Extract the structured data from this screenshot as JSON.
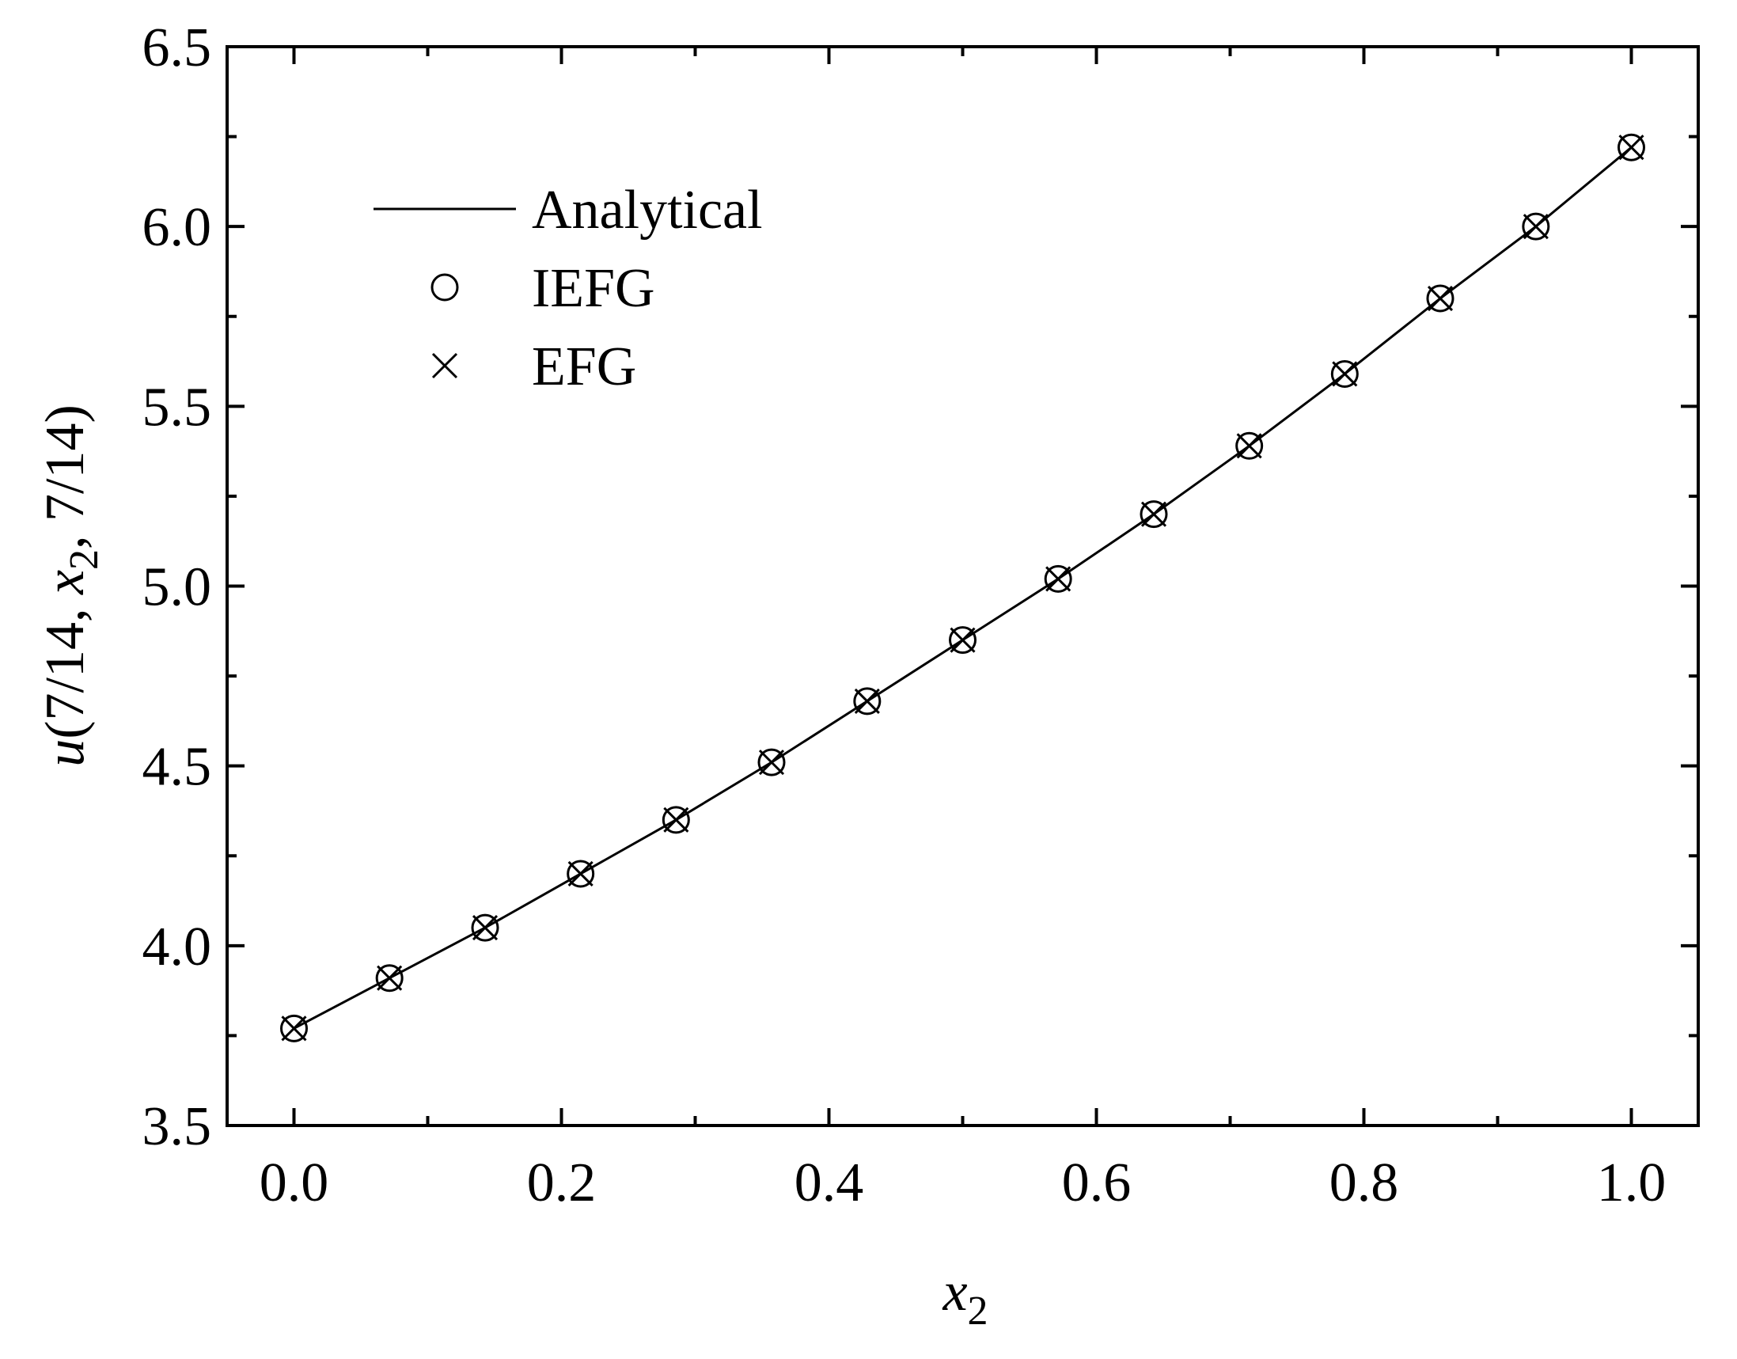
{
  "chart_data": {
    "type": "line",
    "xlabel": [
      "x",
      "2"
    ],
    "ylabel": [
      "u",
      "(7/14, ",
      "x",
      "2",
      ", 7/14)"
    ],
    "x": [
      0,
      0.0714,
      0.1429,
      0.2143,
      0.2857,
      0.3571,
      0.4286,
      0.5,
      0.5714,
      0.6429,
      0.7143,
      0.7857,
      0.8571,
      0.9286,
      1.0
    ],
    "series": [
      {
        "name": "Analytical",
        "color": "#000000",
        "marker": "none",
        "values": [
          3.77,
          3.91,
          4.05,
          4.2,
          4.35,
          4.51,
          4.68,
          4.85,
          5.02,
          5.2,
          5.39,
          5.59,
          5.8,
          6.0,
          6.22
        ]
      },
      {
        "name": "IEFG",
        "color": "#000000",
        "marker": "circle",
        "values": [
          3.77,
          3.91,
          4.05,
          4.2,
          4.35,
          4.51,
          4.68,
          4.85,
          5.02,
          5.2,
          5.39,
          5.59,
          5.8,
          6.0,
          6.22
        ]
      },
      {
        "name": "EFG",
        "color": "#000000",
        "marker": "cross",
        "values": [
          3.77,
          3.91,
          4.05,
          4.2,
          4.35,
          4.51,
          4.68,
          4.85,
          5.02,
          5.2,
          5.39,
          5.59,
          5.8,
          6.0,
          6.22
        ]
      }
    ],
    "xlim": [
      -0.05,
      1.05
    ],
    "ylim": [
      3.5,
      6.5
    ],
    "xticks": [
      {
        "value": 0,
        "label": "0.0"
      },
      0.2,
      0.4,
      0.6,
      0.8,
      {
        "value": 1,
        "label": "1.0"
      }
    ],
    "xminorticks": [
      0.1,
      0.3,
      0.5,
      0.7,
      0.9
    ],
    "yticks": [
      3.5,
      {
        "value": 4,
        "label": "4.0"
      },
      4.5,
      {
        "value": 5,
        "label": "5.0"
      },
      5.5,
      {
        "value": 6,
        "label": "6.0"
      },
      6.5
    ],
    "yminorticks": [
      3.75,
      4.25,
      4.75,
      5.25,
      5.75,
      6.25
    ],
    "legend": "upper-left",
    "grid": false
  }
}
